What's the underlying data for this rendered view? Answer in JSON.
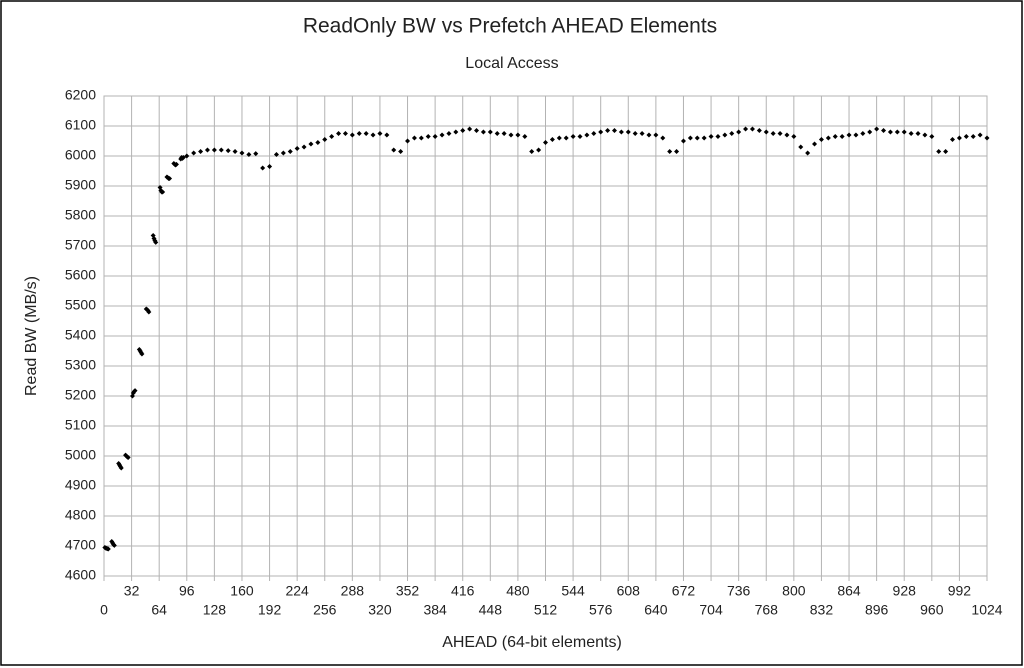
{
  "chart_data": {
    "type": "scatter",
    "title": "ReadOnly BW vs Prefetch AHEAD Elements",
    "subtitle": "Local Access",
    "x_label": "AHEAD (64-bit elements)",
    "y_label": "Read BW (MB/s)",
    "color": "#000000",
    "grid": true,
    "xlim": [
      0,
      1024
    ],
    "xticks": [
      0,
      32,
      64,
      96,
      128,
      160,
      192,
      224,
      256,
      288,
      320,
      352,
      384,
      416,
      448,
      480,
      512,
      544,
      576,
      608,
      640,
      672,
      704,
      736,
      768,
      800,
      832,
      864,
      896,
      928,
      960,
      992,
      1024
    ],
    "ylim": [
      4600,
      6200
    ],
    "yticks": [
      4600,
      4700,
      4800,
      4900,
      5000,
      5100,
      5200,
      5300,
      5400,
      5500,
      5600,
      5700,
      5800,
      5900,
      6000,
      6100,
      6200
    ],
    "x": [
      1,
      2,
      3,
      4,
      5,
      9,
      10,
      11,
      12,
      17,
      18,
      19,
      20,
      25,
      26,
      27,
      28,
      33,
      34,
      35,
      36,
      41,
      42,
      43,
      44,
      49,
      50,
      51,
      52,
      57,
      58,
      59,
      60,
      65,
      66,
      67,
      68,
      73,
      74,
      75,
      76,
      81,
      82,
      83,
      84,
      89,
      90,
      91,
      92,
      96,
      104,
      112,
      120,
      128,
      136,
      144,
      152,
      160,
      168,
      176,
      184,
      192,
      200,
      208,
      216,
      224,
      232,
      240,
      248,
      256,
      264,
      272,
      280,
      288,
      296,
      304,
      312,
      320,
      328,
      336,
      344,
      352,
      360,
      368,
      376,
      384,
      392,
      400,
      408,
      416,
      424,
      432,
      440,
      448,
      456,
      464,
      472,
      480,
      488,
      496,
      504,
      512,
      520,
      528,
      536,
      544,
      552,
      560,
      568,
      576,
      584,
      592,
      600,
      608,
      616,
      624,
      632,
      640,
      648,
      656,
      664,
      672,
      680,
      688,
      696,
      704,
      712,
      720,
      728,
      736,
      744,
      752,
      760,
      768,
      776,
      784,
      792,
      800,
      808,
      816,
      824,
      832,
      840,
      848,
      856,
      864,
      872,
      880,
      888,
      896,
      904,
      912,
      920,
      928,
      936,
      944,
      952,
      960,
      968,
      976,
      984,
      992,
      1000,
      1008,
      1016,
      1024
    ],
    "values": [
      4695,
      4693,
      4692,
      4691,
      4690,
      4715,
      4710,
      4705,
      4702,
      4975,
      4970,
      4965,
      4960,
      5003,
      5000,
      4997,
      4995,
      5200,
      5210,
      5215,
      5218,
      5355,
      5350,
      5345,
      5340,
      5490,
      5488,
      5485,
      5480,
      5735,
      5725,
      5718,
      5712,
      5895,
      5885,
      5880,
      5880,
      5930,
      5928,
      5925,
      5925,
      5975,
      5972,
      5970,
      5972,
      5990,
      5995,
      5992,
      5995,
      6000,
      6010,
      6015,
      6020,
      6020,
      6020,
      6018,
      6015,
      6010,
      6005,
      6008,
      5960,
      5965,
      6005,
      6010,
      6015,
      6025,
      6030,
      6040,
      6045,
      6055,
      6065,
      6075,
      6075,
      6070,
      6075,
      6075,
      6070,
      6075,
      6070,
      6020,
      6015,
      6050,
      6060,
      6060,
      6065,
      6065,
      6070,
      6075,
      6080,
      6085,
      6090,
      6085,
      6080,
      6080,
      6075,
      6075,
      6070,
      6070,
      6065,
      6015,
      6020,
      6045,
      6055,
      6060,
      6060,
      6065,
      6065,
      6070,
      6075,
      6080,
      6085,
      6085,
      6080,
      6080,
      6075,
      6075,
      6070,
      6070,
      6060,
      6015,
      6015,
      6050,
      6060,
      6060,
      6060,
      6065,
      6065,
      6070,
      6075,
      6080,
      6090,
      6090,
      6085,
      6080,
      6075,
      6075,
      6070,
      6065,
      6030,
      6010,
      6040,
      6055,
      6060,
      6065,
      6065,
      6070,
      6070,
      6075,
      6080,
      6090,
      6085,
      6080,
      6080,
      6080,
      6075,
      6075,
      6070,
      6065,
      6015,
      6015,
      6055,
      6060,
      6065,
      6065,
      6070,
      6060
    ]
  }
}
